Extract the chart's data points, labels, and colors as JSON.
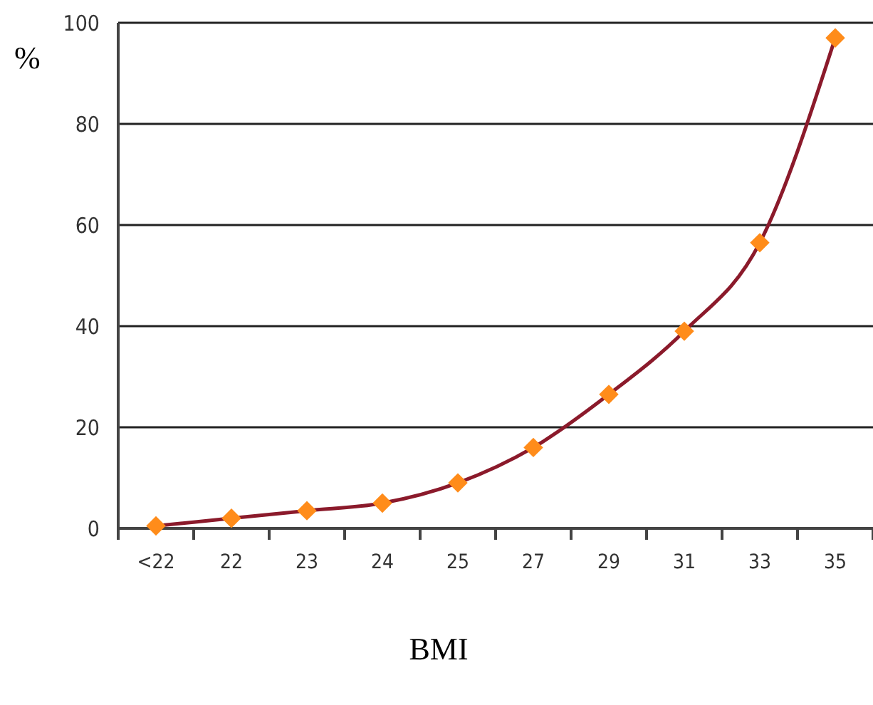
{
  "chart_data": {
    "type": "line",
    "xlabel": "BMI",
    "ylabel": "%",
    "categories": [
      "<22",
      "22",
      "23",
      "24",
      "25",
      "27",
      "29",
      "31",
      "33",
      "35"
    ],
    "series": [
      {
        "color": "#8b1a2b",
        "values": [
          0.5,
          2,
          3.5,
          5,
          9,
          16,
          26.5,
          39,
          56.5,
          97
        ]
      }
    ],
    "ylim": [
      0,
      100
    ],
    "yticks": [
      0,
      20,
      40,
      60,
      80,
      100
    ],
    "grid": "y",
    "marker": "diamond",
    "line_style": "solid"
  }
}
